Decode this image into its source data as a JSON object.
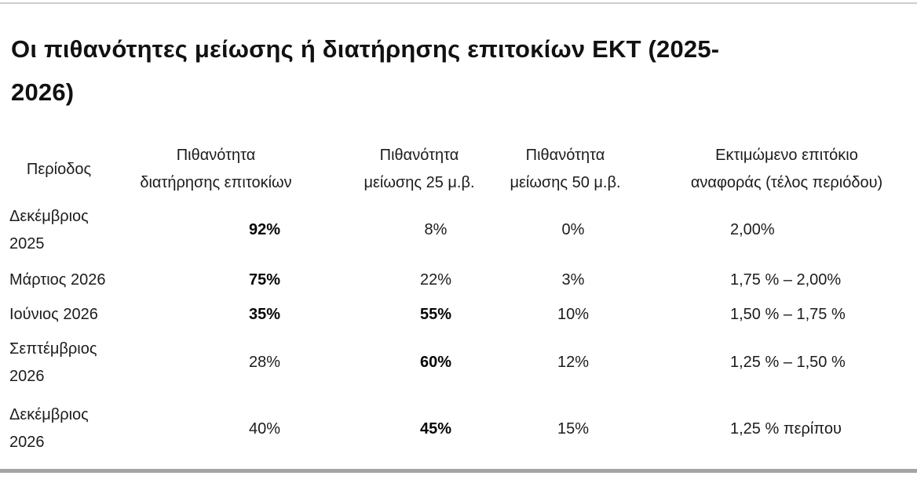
{
  "title": {
    "text": "Οι πιθανότητες μείωσης ή διατήρησης επιτοκίων ΕΚΤ (2025-2026)",
    "lines": [
      "Οι πιθανότητες μείωσης ή διατήρησης επιτοκίων ΕΚΤ (2025-",
      "2026)"
    ]
  },
  "table": {
    "columns": [
      {
        "id": "period",
        "lines": [
          "Περίοδος"
        ]
      },
      {
        "id": "prob_hold",
        "lines": [
          "Πιθανότητα",
          "διατήρησης επιτοκίων"
        ]
      },
      {
        "id": "prob_cut_25",
        "lines": [
          "Πιθανότητα",
          "μείωσης 25 μ.β."
        ]
      },
      {
        "id": "prob_cut_50",
        "lines": [
          "Πιθανότητα",
          "μείωσης 50 μ.β."
        ]
      },
      {
        "id": "estimated_rate",
        "lines": [
          "Εκτιμώμενο επιτόκιο",
          "αναφοράς (τέλος περιόδου)"
        ]
      }
    ],
    "rows": [
      {
        "period": "Δεκέμβριος 2025",
        "prob_hold": "92%",
        "prob_cut_25": "8%",
        "prob_cut_50": "0%",
        "estimated_rate": "2,00%",
        "bold_values": [
          "prob_hold"
        ]
      },
      {
        "period": "Μάρτιος 2026",
        "prob_hold": "75%",
        "prob_cut_25": "22%",
        "prob_cut_50": "3%",
        "estimated_rate": "1,75 % – 2,00%",
        "bold_values": [
          "prob_hold"
        ]
      },
      {
        "period": "Ιούνιος 2026",
        "prob_hold": "35%",
        "prob_cut_25": "55%",
        "prob_cut_50": "10%",
        "estimated_rate": "1,50 % – 1,75 %",
        "bold_values": [
          "prob_hold",
          "prob_cut_25"
        ]
      },
      {
        "period": "Σεπτέμβριος 2026",
        "prob_hold": "28%",
        "prob_cut_25": "60%",
        "prob_cut_50": "12%",
        "estimated_rate": "1,25 % – 1,50 %",
        "bold_values": [
          "prob_cut_25"
        ]
      },
      {
        "period": "Δεκέμβριος 2026",
        "prob_hold": "40%",
        "prob_cut_25": "45%",
        "prob_cut_50": "15%",
        "estimated_rate": "1,25 % περίπου",
        "bold_values": [
          "prob_cut_25"
        ]
      }
    ]
  },
  "colors": {
    "background": "#ffffff",
    "text": "#1c1c1c",
    "title_text": "#111111",
    "divider_top": "#cdcdcd",
    "divider_bottom": "#a4a4a4"
  }
}
